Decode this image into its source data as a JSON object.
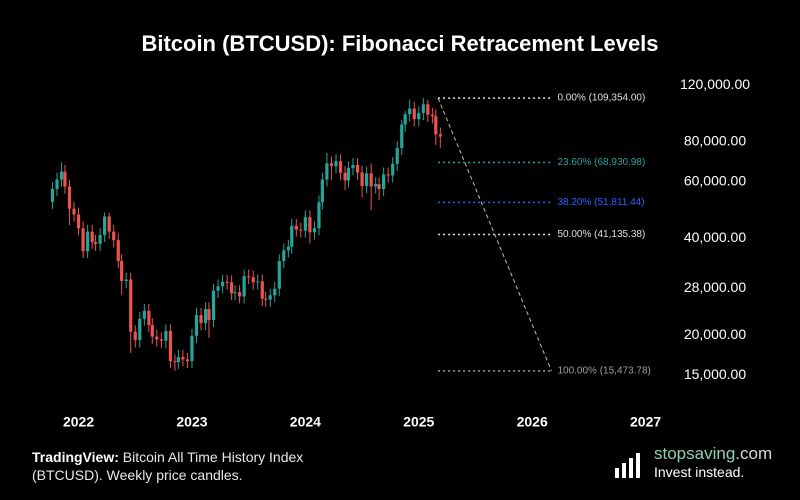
{
  "chart_data": {
    "type": "candlestick",
    "title": "Bitcoin (BTCUSD): Fibonacci Retracement Levels",
    "log_scale": true,
    "up_color": "#26a69a",
    "down_color": "#ef5350",
    "xlim": [
      2021.66,
      2027.18
    ],
    "xticks": [
      2022,
      2023,
      2024,
      2025,
      2026,
      2027
    ],
    "ylim": [
      14500,
      124500
    ],
    "yticks": [
      {
        "value": 15000,
        "label": "15,000.00"
      },
      {
        "value": 20000,
        "label": "20,000.00"
      },
      {
        "value": 28000,
        "label": "28,000.00"
      },
      {
        "value": 40000,
        "label": "40,000.00"
      },
      {
        "value": 60000,
        "label": "60,000.00"
      },
      {
        "value": 80000,
        "label": "80,000.00"
      },
      {
        "value": 120000,
        "label": "120,000.00"
      }
    ],
    "x": [
      2021.77,
      2021.81,
      2021.85,
      2021.88,
      2021.92,
      2021.96,
      2022.0,
      2022.04,
      2022.08,
      2022.12,
      2022.15,
      2022.19,
      2022.23,
      2022.27,
      2022.31,
      2022.35,
      2022.38,
      2022.42,
      2022.46,
      2022.5,
      2022.54,
      2022.58,
      2022.62,
      2022.65,
      2022.69,
      2022.73,
      2022.77,
      2022.81,
      2022.85,
      2022.88,
      2022.92,
      2022.96,
      2023.0,
      2023.04,
      2023.08,
      2023.12,
      2023.15,
      2023.19,
      2023.23,
      2023.27,
      2023.31,
      2023.35,
      2023.38,
      2023.42,
      2023.46,
      2023.5,
      2023.54,
      2023.58,
      2023.62,
      2023.65,
      2023.69,
      2023.73,
      2023.77,
      2023.81,
      2023.85,
      2023.88,
      2023.92,
      2023.96,
      2024.0,
      2024.04,
      2024.08,
      2024.12,
      2024.15,
      2024.19,
      2024.23,
      2024.27,
      2024.31,
      2024.35,
      2024.38,
      2024.42,
      2024.46,
      2024.5,
      2024.54,
      2024.58,
      2024.62,
      2024.65,
      2024.69,
      2024.73,
      2024.77,
      2024.81,
      2024.85,
      2024.88,
      2024.92,
      2024.96,
      2025.0,
      2025.04,
      2025.08,
      2025.12,
      2025.15,
      2025.19
    ],
    "open": [
      52000,
      57000,
      61000,
      64500,
      58000,
      49500,
      47500,
      43000,
      36500,
      42000,
      39000,
      38500,
      41000,
      46800,
      42000,
      39500,
      34000,
      29500,
      29800,
      20500,
      19300,
      22500,
      23800,
      21500,
      19800,
      19400,
      19200,
      20600,
      16600,
      16500,
      17100,
      16800,
      16600,
      19900,
      23100,
      21800,
      24100,
      22300,
      27500,
      28400,
      29300,
      29200,
      27000,
      27200,
      26400,
      30500,
      30300,
      29200,
      29400,
      26000,
      25800,
      26600,
      27900,
      34000,
      36700,
      37700,
      43800,
      42600,
      42300,
      46600,
      41800,
      43000,
      51800,
      61000,
      68500,
      67200,
      69600,
      64000,
      60600,
      66200,
      67700,
      64200,
      58200,
      63800,
      58100,
      59000,
      57000,
      63300,
      62800,
      68300,
      76500,
      90500,
      97400,
      101500,
      94000,
      98300,
      104500,
      97000,
      96000,
      84300
    ],
    "high": [
      59900,
      64100,
      69000,
      67700,
      60900,
      52000,
      49900,
      45200,
      44100,
      44100,
      41000,
      43100,
      48200,
      48200,
      44100,
      41500,
      35700,
      31300,
      31300,
      21500,
      23600,
      25000,
      25000,
      22600,
      20800,
      20400,
      21600,
      21600,
      17400,
      18000,
      18000,
      17600,
      20900,
      24300,
      24300,
      25300,
      25300,
      28900,
      29800,
      30800,
      30800,
      30700,
      28600,
      28600,
      32000,
      32000,
      31800,
      30900,
      30900,
      27300,
      27900,
      29300,
      35700,
      38500,
      39600,
      46000,
      46000,
      44700,
      48900,
      48900,
      45200,
      54400,
      64100,
      73800,
      71900,
      73100,
      73100,
      67200,
      69500,
      71100,
      71100,
      67400,
      67000,
      68500,
      62000,
      62000,
      66500,
      66500,
      71700,
      80300,
      93500,
      99600,
      108200,
      106600,
      103200,
      109354,
      108000,
      102000,
      100800,
      88500
    ],
    "low": [
      49400,
      54200,
      58000,
      55100,
      44000,
      45100,
      40900,
      34700,
      34700,
      37100,
      36600,
      36600,
      39000,
      39900,
      37500,
      32300,
      26700,
      28000,
      17600,
      18300,
      18300,
      21400,
      20400,
      18800,
      18400,
      18200,
      18200,
      15800,
      15476,
      15700,
      16000,
      15800,
      15800,
      18900,
      20700,
      20700,
      19600,
      21200,
      26100,
      27000,
      27700,
      25700,
      25700,
      25100,
      25100,
      28800,
      27700,
      27700,
      24700,
      24500,
      24500,
      25300,
      26500,
      32300,
      34900,
      35800,
      40500,
      40200,
      40200,
      38600,
      39700,
      40900,
      49200,
      58000,
      60800,
      63800,
      60800,
      56600,
      57600,
      62900,
      61000,
      53500,
      55300,
      49000,
      55200,
      52600,
      54200,
      59700,
      59700,
      64900,
      72700,
      86000,
      92500,
      89300,
      89300,
      93400,
      92200,
      91200,
      78200,
      76600
    ],
    "close": [
      57000,
      61000,
      64500,
      58000,
      49500,
      47500,
      43000,
      36500,
      42000,
      39000,
      38500,
      41000,
      46800,
      42000,
      39500,
      34000,
      29500,
      29800,
      20500,
      19300,
      22500,
      23800,
      21500,
      19800,
      19400,
      19200,
      20600,
      16600,
      16500,
      17100,
      16800,
      16600,
      19900,
      23100,
      21800,
      24100,
      22300,
      27500,
      28400,
      29300,
      29200,
      27000,
      27200,
      26400,
      30500,
      30300,
      29200,
      29400,
      26000,
      25800,
      26600,
      27900,
      34000,
      36700,
      37700,
      43800,
      42600,
      42300,
      46600,
      41800,
      43000,
      51800,
      61000,
      68500,
      67200,
      69600,
      64000,
      60600,
      66200,
      67700,
      64200,
      58200,
      63800,
      58100,
      59000,
      57000,
      63300,
      62800,
      68300,
      76500,
      90500,
      97400,
      101500,
      94000,
      98300,
      104500,
      97000,
      96000,
      84300,
      83000
    ],
    "fib_x": [
      2025.17,
      2026.17
    ],
    "fibonacci": [
      {
        "value": 109354.0,
        "label": "0.00% (109,354.00)",
        "color": "#e0e0e0"
      },
      {
        "value": 68930.98,
        "label": "23.60% (68,930.98)",
        "color": "#26a69a"
      },
      {
        "value": 51811.44,
        "label": "38.20% (51,811.44)",
        "color": "#2962ff"
      },
      {
        "value": 41135.38,
        "label": "50.00% (41,135.38)",
        "color": "#e0e0e0"
      },
      {
        "value": 15473.78,
        "label": "100.00% (15,473.78)",
        "color": "#9e9e9e"
      }
    ]
  },
  "footer": {
    "source_label": "TradingView:",
    "source_text": "Bitcoin All Time History Index (BTCUSD). Weekly price candles.",
    "logo_name": "stopsaving",
    "logo_tld": ".com",
    "tagline": "Invest instead."
  }
}
